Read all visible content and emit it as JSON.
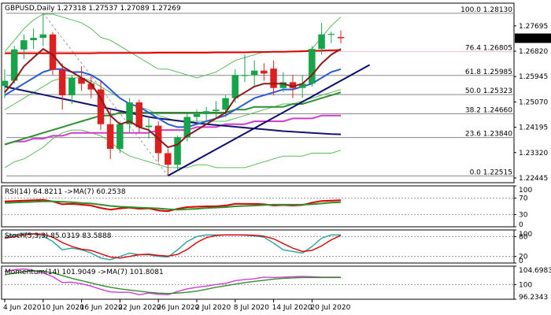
{
  "colors": {
    "bull": "#16a34a",
    "bear": "#dc1f1f",
    "bb": "#5cba5c",
    "ma_red": "#dd0000",
    "ma_brown": "#8b1a1a",
    "ma_blue": "#2a5bd7",
    "ma_green": "#2f8f2f",
    "ma_magenta": "#d23bd2",
    "navy": "#14146e",
    "trend": "#0a0a6e",
    "fib": "#888888",
    "price_tag": "#000000"
  },
  "chart_data": {
    "type": "candlestick",
    "title": "GBPUSD,Daily  1.27318 1.27537 1.27089 1.27269",
    "price_tag": "1.27269",
    "ylim": [
      1.2228,
      1.2848
    ],
    "y_ticks": [
      "1.27695",
      "1.26820",
      "1.25945",
      "1.25070",
      "1.24195",
      "1.23320",
      "1.22445"
    ],
    "x_labels": [
      "4 Jun 2020",
      "10 Jun 2020",
      "16 Jun 2020",
      "22 Jun 2020",
      "26 Jun 2020",
      "2 Jul 2020",
      "8 Jul 2020",
      "14 Jul 2020",
      "20 Jul 2020"
    ],
    "x_label_index": [
      0,
      4,
      8,
      12,
      16,
      20,
      24,
      28,
      32
    ],
    "fib_levels": [
      {
        "label": "100.0 1.28130",
        "value": 1.2813
      },
      {
        "label": "76.4 1.26805",
        "value": 1.26805
      },
      {
        "label": "61.8 1.25985",
        "value": 1.25985
      },
      {
        "label": "50.0 1.25323",
        "value": 1.25323
      },
      {
        "label": "38.2 1.24660",
        "value": 1.2466
      },
      {
        "label": "23.6 1.23840",
        "value": 1.2384
      },
      {
        "label": "0.0 1.22515",
        "value": 1.22515
      }
    ],
    "candles": [
      {
        "o": 1.2562,
        "h": 1.2619,
        "l": 1.252,
        "c": 1.258
      },
      {
        "o": 1.258,
        "h": 1.27,
        "l": 1.257,
        "c": 1.2688
      },
      {
        "o": 1.2688,
        "h": 1.274,
        "l": 1.2655,
        "c": 1.272
      },
      {
        "o": 1.272,
        "h": 1.276,
        "l": 1.269,
        "c": 1.2728
      },
      {
        "o": 1.2728,
        "h": 1.2813,
        "l": 1.27,
        "c": 1.274
      },
      {
        "o": 1.274,
        "h": 1.2748,
        "l": 1.26,
        "c": 1.2618
      },
      {
        "o": 1.2618,
        "h": 1.264,
        "l": 1.248,
        "c": 1.253
      },
      {
        "o": 1.253,
        "h": 1.26,
        "l": 1.25,
        "c": 1.259
      },
      {
        "o": 1.259,
        "h": 1.263,
        "l": 1.2545,
        "c": 1.257
      },
      {
        "o": 1.257,
        "h": 1.26,
        "l": 1.252,
        "c": 1.255
      },
      {
        "o": 1.255,
        "h": 1.258,
        "l": 1.241,
        "c": 1.243
      },
      {
        "o": 1.243,
        "h": 1.248,
        "l": 1.231,
        "c": 1.2345
      },
      {
        "o": 1.2345,
        "h": 1.244,
        "l": 1.233,
        "c": 1.243
      },
      {
        "o": 1.243,
        "h": 1.252,
        "l": 1.24,
        "c": 1.2505
      },
      {
        "o": 1.2505,
        "h": 1.2515,
        "l": 1.24,
        "c": 1.242
      },
      {
        "o": 1.242,
        "h": 1.245,
        "l": 1.238,
        "c": 1.2425
      },
      {
        "o": 1.2425,
        "h": 1.244,
        "l": 1.23,
        "c": 1.233
      },
      {
        "o": 1.233,
        "h": 1.2345,
        "l": 1.2252,
        "c": 1.229
      },
      {
        "o": 1.229,
        "h": 1.239,
        "l": 1.227,
        "c": 1.2385
      },
      {
        "o": 1.2385,
        "h": 1.247,
        "l": 1.237,
        "c": 1.2455
      },
      {
        "o": 1.2455,
        "h": 1.248,
        "l": 1.244,
        "c": 1.2465
      },
      {
        "o": 1.2465,
        "h": 1.249,
        "l": 1.244,
        "c": 1.2475
      },
      {
        "o": 1.2475,
        "h": 1.251,
        "l": 1.245,
        "c": 1.248
      },
      {
        "o": 1.248,
        "h": 1.253,
        "l": 1.2455,
        "c": 1.252
      },
      {
        "o": 1.252,
        "h": 1.262,
        "l": 1.2505,
        "c": 1.26
      },
      {
        "o": 1.26,
        "h": 1.267,
        "l": 1.2575,
        "c": 1.26
      },
      {
        "o": 1.26,
        "h": 1.265,
        "l": 1.256,
        "c": 1.2615
      },
      {
        "o": 1.2615,
        "h": 1.264,
        "l": 1.258,
        "c": 1.2605
      },
      {
        "o": 1.2622,
        "h": 1.265,
        "l": 1.253,
        "c": 1.2555
      },
      {
        "o": 1.2555,
        "h": 1.261,
        "l": 1.254,
        "c": 1.2575
      },
      {
        "o": 1.2575,
        "h": 1.26,
        "l": 1.252,
        "c": 1.2555
      },
      {
        "o": 1.2555,
        "h": 1.26,
        "l": 1.252,
        "c": 1.257
      },
      {
        "o": 1.257,
        "h": 1.27,
        "l": 1.256,
        "c": 1.269
      },
      {
        "o": 1.269,
        "h": 1.278,
        "l": 1.267,
        "c": 1.274
      },
      {
        "o": 1.274,
        "h": 1.275,
        "l": 1.271,
        "c": 1.2742
      },
      {
        "o": 1.2731,
        "h": 1.2754,
        "l": 1.2709,
        "c": 1.2727
      }
    ],
    "indicators": {
      "bb_upper": [
        1.268,
        1.272,
        1.276,
        1.279,
        1.281,
        1.281,
        1.28,
        1.279,
        1.278,
        1.276,
        1.273,
        1.272,
        1.27,
        1.268,
        1.266,
        1.264,
        1.262,
        1.262,
        1.261,
        1.26,
        1.259,
        1.26,
        1.261,
        1.263,
        1.265,
        1.266,
        1.267,
        1.268,
        1.268,
        1.268,
        1.268,
        1.268,
        1.269,
        1.273,
        1.277,
        1.28
      ],
      "bb_middle": [
        1.248,
        1.25,
        1.252,
        1.254,
        1.256,
        1.258,
        1.259,
        1.259,
        1.259,
        1.258,
        1.256,
        1.254,
        1.252,
        1.25,
        1.249,
        1.248,
        1.246,
        1.245,
        1.244,
        1.244,
        1.244,
        1.244,
        1.244,
        1.244,
        1.245,
        1.246,
        1.247,
        1.248,
        1.249,
        1.25,
        1.25,
        1.251,
        1.252,
        1.253,
        1.254,
        1.255
      ],
      "bb_lower": [
        1.228,
        1.23,
        1.231,
        1.233,
        1.235,
        1.238,
        1.24,
        1.241,
        1.241,
        1.24,
        1.239,
        1.237,
        1.234,
        1.232,
        1.231,
        1.23,
        1.229,
        1.228,
        1.228,
        1.228,
        1.229,
        1.229,
        1.228,
        1.228,
        1.228,
        1.228,
        1.229,
        1.23,
        1.231,
        1.232,
        1.232,
        1.232,
        1.233,
        1.233,
        1.233,
        1.234
      ],
      "ma_red": [
        1.2675,
        1.2675,
        1.2675,
        1.2675,
        1.2675,
        1.2675,
        1.2675,
        1.2675,
        1.2675,
        1.2675,
        1.2676,
        1.2676,
        1.2676,
        1.2676,
        1.2676,
        1.2676,
        1.2677,
        1.2677,
        1.2677,
        1.2677,
        1.2677,
        1.2677,
        1.2678,
        1.2678,
        1.2678,
        1.2678,
        1.2679,
        1.2679,
        1.268,
        1.268,
        1.2681,
        1.2682,
        1.2683,
        1.2684,
        1.2685,
        1.2686
      ],
      "ma_brown": [
        1.254,
        1.258,
        1.263,
        1.266,
        1.269,
        1.267,
        1.263,
        1.261,
        1.259,
        1.257,
        1.252,
        1.246,
        1.243,
        1.244,
        1.242,
        1.241,
        1.238,
        1.235,
        1.236,
        1.239,
        1.241,
        1.243,
        1.245,
        1.247,
        1.252,
        1.254,
        1.256,
        1.257,
        1.257,
        1.257,
        1.256,
        1.257,
        1.26,
        1.264,
        1.267,
        1.269
      ],
      "ma_blue": [
        1.253,
        1.255,
        1.257,
        1.259,
        1.261,
        1.262,
        1.262,
        1.261,
        1.261,
        1.26,
        1.258,
        1.255,
        1.252,
        1.25,
        1.249,
        1.247,
        1.245,
        1.243,
        1.242,
        1.242,
        1.243,
        1.244,
        1.245,
        1.246,
        1.248,
        1.25,
        1.252,
        1.253,
        1.254,
        1.255,
        1.255,
        1.256,
        1.257,
        1.259,
        1.261,
        1.262
      ],
      "ma_green": [
        1.236,
        1.237,
        1.238,
        1.239,
        1.24,
        1.241,
        1.242,
        1.243,
        1.244,
        1.245,
        1.246,
        1.246,
        1.247,
        1.247,
        1.247,
        1.247,
        1.247,
        1.247,
        1.247,
        1.247,
        1.247,
        1.247,
        1.247,
        1.247,
        1.248,
        1.248,
        1.249,
        1.249,
        1.249,
        1.249,
        1.25,
        1.25,
        1.251,
        1.252,
        1.253,
        1.254
      ],
      "ma_magenta": [
        1.236,
        1.237,
        1.237,
        1.238,
        1.238,
        1.239,
        1.239,
        1.24,
        1.24,
        1.24,
        1.24,
        1.24,
        1.24,
        1.24,
        1.24,
        1.24,
        1.241,
        1.241,
        1.241,
        1.241,
        1.242,
        1.242,
        1.242,
        1.243,
        1.243,
        1.243,
        1.244,
        1.244,
        1.244,
        1.244,
        1.245,
        1.245,
        1.245,
        1.246,
        1.246,
        1.246
      ],
      "navy": [
        1.256,
        1.2553,
        1.2546,
        1.2539,
        1.2532,
        1.2525,
        1.2518,
        1.2511,
        1.2504,
        1.2497,
        1.249,
        1.2483,
        1.2476,
        1.2469,
        1.2462,
        1.2455,
        1.245,
        1.2446,
        1.2442,
        1.2438,
        1.2434,
        1.243,
        1.2427,
        1.2424,
        1.2421,
        1.2418,
        1.2415,
        1.2412,
        1.2409,
        1.2406,
        1.2404,
        1.2402,
        1.24,
        1.2398,
        1.2396,
        1.2395
      ]
    },
    "trendline": {
      "from": {
        "i": 17,
        "v": 1.2252
      },
      "to": {
        "i": 38,
        "v": 1.2635
      }
    },
    "retrace_line": {
      "from": {
        "i": 4,
        "v": 1.2813
      },
      "to": {
        "i": 17,
        "v": 1.2252
      }
    },
    "panels": [
      {
        "name": "rsi",
        "label": "RSI(14) 64.8211  ->MA(7) 60.2538",
        "ticks": [
          "100",
          "70",
          "30",
          "0"
        ],
        "tick_values": [
          100,
          70,
          30,
          0
        ],
        "ylim": [
          0,
          100
        ],
        "guide_values": [
          70,
          30
        ],
        "series": [
          {
            "name": "RSI(14)",
            "color": "#dd0000",
            "values": [
              62,
              63,
              64,
              65,
              66,
              62,
              55,
              56,
              54,
              52,
              46,
              42,
              45,
              47,
              44,
              45,
              40,
              38,
              44,
              48,
              49,
              50,
              50,
              52,
              56,
              56,
              56,
              55,
              52,
              53,
              52,
              53,
              59,
              63,
              64,
              65
            ]
          },
          {
            "name": "MA(7)",
            "color": "#2f8f2f",
            "values": [
              58,
              59,
              60,
              61,
              62,
              62,
              61,
              60,
              58,
              57,
              54,
              51,
              49,
              48,
              47,
              46,
              45,
              43,
              42,
              43,
              44,
              46,
              47,
              48,
              50,
              51,
              52,
              53,
              54,
              54,
              54,
              54,
              55,
              57,
              59,
              60
            ]
          }
        ]
      },
      {
        "name": "stoch",
        "label": "Stoch(5,3,3) 85.0319 83.5888",
        "ticks": [
          "100",
          "80",
          "20",
          "0"
        ],
        "tick_values": [
          100,
          80,
          20,
          0
        ],
        "ylim": [
          0,
          100
        ],
        "guide_values": [
          80,
          20
        ],
        "series": [
          {
            "name": "%K",
            "color": "#2aa0a0",
            "values": [
              80,
              85,
              90,
              88,
              82,
              65,
              40,
              45,
              40,
              30,
              15,
              10,
              20,
              30,
              25,
              25,
              20,
              18,
              40,
              65,
              80,
              85,
              85,
              85,
              85,
              84,
              82,
              78,
              60,
              40,
              35,
              30,
              50,
              75,
              85,
              85
            ]
          },
          {
            "name": "%D",
            "color": "#dd0000",
            "values": [
              75,
              80,
              85,
              88,
              87,
              78,
              62,
              50,
              42,
              38,
              28,
              18,
              15,
              20,
              25,
              27,
              23,
              21,
              26,
              41,
              62,
              77,
              83,
              85,
              85,
              85,
              84,
              81,
              73,
              59,
              45,
              35,
              38,
              52,
              70,
              84
            ]
          }
        ]
      },
      {
        "name": "momentum",
        "label": "Momentum(14) 101.9049  ->MA(7) 101.8081",
        "ticks": [
          "104.6983",
          "100",
          "96.2343"
        ],
        "tick_values": [
          104.6983,
          100,
          96.2343
        ],
        "ylim": [
          96.2343,
          104.6983
        ],
        "guide_values": [
          100
        ],
        "series": [
          {
            "name": "Momentum(14)",
            "color": "#d23bd2",
            "values": [
              103.3,
              103.8,
              104.0,
              103.6,
              103.0,
              102.0,
              100.5,
              100.6,
              100.2,
              99.6,
              98.8,
              98.1,
              98.0,
              98.0,
              97.4,
              97.8,
              97.5,
              97.4,
              98.2,
              98.9,
              99.3,
              99.6,
              100.0,
              100.3,
              101.0,
              101.3,
              101.5,
              101.9,
              101.8,
              101.9,
              102.0,
              102.1,
              102.0,
              101.9,
              101.9,
              101.9
            ]
          },
          {
            "name": "MA(7)",
            "color": "#2f8f2f",
            "values": [
              102.5,
              102.9,
              103.3,
              103.5,
              103.4,
              103.0,
              102.3,
              101.6,
              101.0,
              100.4,
              99.8,
              99.3,
              98.9,
              98.6,
              98.3,
              98.0,
              97.8,
              97.7,
              97.8,
              98.0,
              98.3,
              98.8,
              99.3,
              99.7,
              100.1,
              100.5,
              100.8,
              101.1,
              101.4,
              101.6,
              101.7,
              101.8,
              101.8,
              101.8,
              101.8,
              101.8
            ]
          }
        ]
      }
    ]
  }
}
